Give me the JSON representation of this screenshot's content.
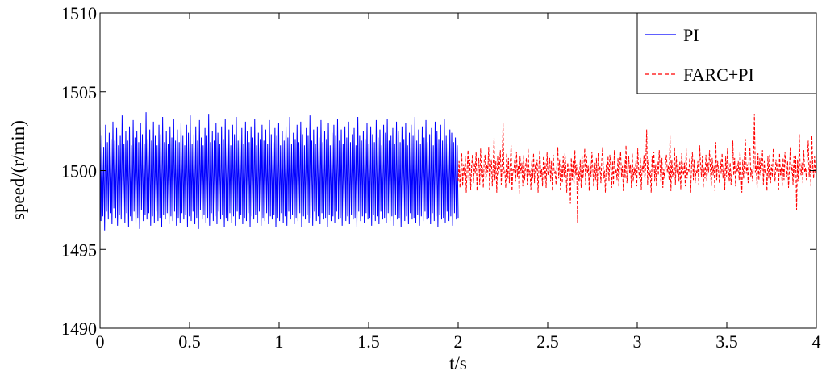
{
  "chart_data": {
    "type": "line",
    "xlabel": "t/s",
    "ylabel": "speed/(r/min)",
    "xlim": [
      0,
      4
    ],
    "ylim": [
      1490,
      1510
    ],
    "x_ticks": [
      "0",
      "0.5",
      "1",
      "1.5",
      "2",
      "2.5",
      "3",
      "3.5",
      "4"
    ],
    "y_ticks": [
      "1490",
      "1495",
      "1500",
      "1505",
      "1510"
    ],
    "grid": false,
    "legend_position": "top-right",
    "series": [
      {
        "name": "PI",
        "color": "#0000ff",
        "line_style": "solid",
        "t_start": 0,
        "t_end": 2,
        "sample_step": 0.005,
        "center": 1499.85,
        "values": [
          1503.0,
          1496.8,
          1502.2,
          1497.1,
          1501.5,
          1496.2,
          1502.9,
          1497.4,
          1501.8,
          1496.9,
          1502.4,
          1497.3,
          1502.0,
          1496.6,
          1503.1,
          1497.6,
          1501.9,
          1497.0,
          1502.7,
          1496.5,
          1501.6,
          1497.2,
          1502.2,
          1496.9,
          1503.5,
          1497.5,
          1501.7,
          1496.7,
          1502.5,
          1497.3,
          1501.9,
          1496.4,
          1502.8,
          1497.1,
          1501.6,
          1496.8,
          1503.2,
          1497.4,
          1502.1,
          1496.6,
          1502.5,
          1497.0,
          1501.8,
          1496.3,
          1503.0,
          1497.5,
          1502.3,
          1496.8,
          1501.7,
          1497.2,
          1503.7,
          1496.9,
          1502.0,
          1497.3,
          1502.6,
          1496.5,
          1501.9,
          1497.1,
          1503.1,
          1496.7,
          1502.2,
          1497.4,
          1501.6,
          1496.8,
          1502.9,
          1497.0,
          1502.3,
          1496.4,
          1503.4,
          1497.2,
          1501.8,
          1496.9,
          1502.5,
          1497.3,
          1501.7,
          1496.6,
          1502.8,
          1497.1,
          1502.1,
          1496.8,
          1503.3,
          1497.4,
          1501.9,
          1496.5,
          1502.6,
          1497.0,
          1501.8,
          1496.7,
          1503.0,
          1497.3,
          1502.2,
          1496.9,
          1501.6,
          1497.2,
          1502.9,
          1496.4,
          1502.4,
          1497.1,
          1503.5,
          1496.8,
          1501.7,
          1497.4,
          1502.3,
          1496.6,
          1502.8,
          1497.0,
          1501.9,
          1496.3,
          1503.2,
          1497.5,
          1502.1,
          1496.9,
          1501.6,
          1497.2,
          1502.7,
          1496.7,
          1502.2,
          1497.0,
          1503.6,
          1496.5,
          1501.8,
          1497.3,
          1502.5,
          1496.8,
          1501.9,
          1497.1,
          1503.0,
          1496.6,
          1502.4,
          1497.4,
          1501.7,
          1496.9,
          1502.8,
          1497.2,
          1502.0,
          1496.4,
          1503.3,
          1497.0,
          1501.8,
          1496.8,
          1502.6,
          1497.3,
          1501.6,
          1496.7,
          1502.9,
          1497.1,
          1502.3,
          1496.5,
          1503.4,
          1497.4,
          1501.9,
          1496.9,
          1502.2,
          1497.2,
          1502.7,
          1496.6,
          1501.7,
          1497.0,
          1503.1,
          1496.8,
          1502.5,
          1497.3,
          1501.8,
          1496.4,
          1502.8,
          1497.1,
          1502.1,
          1496.9,
          1503.3,
          1497.2,
          1501.6,
          1496.7,
          1502.4,
          1497.4,
          1502.0,
          1496.5,
          1502.9,
          1497.0,
          1501.9,
          1496.8,
          1502.6,
          1497.3,
          1501.7,
          1496.6,
          1503.2,
          1497.1,
          1502.3,
          1496.9,
          1501.8,
          1497.2,
          1502.7,
          1496.4,
          1502.2,
          1497.0,
          1503.0,
          1496.8,
          1501.6,
          1497.3,
          1502.5,
          1496.7,
          1501.9,
          1497.1,
          1502.8,
          1496.5,
          1502.1,
          1497.4,
          1503.4,
          1496.9,
          1501.7,
          1497.2,
          1502.4,
          1496.6,
          1502.0,
          1497.0,
          1502.9,
          1496.8,
          1501.8,
          1497.3,
          1503.1,
          1496.4,
          1502.3,
          1497.1,
          1501.6,
          1496.9,
          1502.7,
          1497.2,
          1502.2,
          1496.7,
          1503.5,
          1497.0,
          1501.9,
          1496.5,
          1502.6,
          1497.4,
          1501.7,
          1496.8,
          1502.8,
          1497.1,
          1502.1,
          1496.6,
          1503.2,
          1497.3,
          1501.8,
          1496.9,
          1502.5,
          1497.0,
          1502.0,
          1496.4,
          1503.0,
          1497.2,
          1501.6,
          1496.8,
          1502.4,
          1497.1,
          1502.9,
          1496.7,
          1502.2,
          1497.4,
          1503.3,
          1496.9,
          1501.9,
          1497.0,
          1502.6,
          1496.5,
          1501.7,
          1497.3,
          1502.8,
          1496.8,
          1502.1,
          1497.1,
          1503.1,
          1496.6,
          1501.8,
          1497.2,
          1502.3,
          1496.9,
          1502.7,
          1497.0,
          1501.6,
          1496.4,
          1503.4,
          1497.4,
          1502.2,
          1496.8,
          1501.9,
          1497.1,
          1502.5,
          1496.7,
          1502.0,
          1497.3,
          1503.0,
          1496.9,
          1501.7,
          1497.0,
          1502.8,
          1496.5,
          1502.3,
          1497.2,
          1501.8,
          1496.8,
          1503.2,
          1497.1,
          1502.1,
          1496.6,
          1502.6,
          1497.4,
          1501.6,
          1496.9,
          1502.9,
          1497.0,
          1502.4,
          1496.7,
          1503.3,
          1497.3,
          1501.9,
          1496.8,
          1502.2,
          1497.1,
          1502.7,
          1496.5,
          1501.7,
          1497.2,
          1503.1,
          1496.9,
          1502.5,
          1497.0,
          1501.8,
          1496.4,
          1502.8,
          1497.4,
          1502.0,
          1496.8,
          1503.0,
          1497.1,
          1501.6,
          1496.6,
          1502.4,
          1497.3,
          1502.9,
          1496.9,
          1502.2,
          1497.0,
          1503.4,
          1496.7,
          1501.9,
          1497.2,
          1502.6,
          1496.5,
          1501.7,
          1497.1,
          1502.8,
          1496.8,
          1502.1,
          1497.4,
          1503.2,
          1496.9,
          1501.8,
          1497.0,
          1502.3,
          1496.6,
          1502.7,
          1497.3,
          1501.6,
          1496.8,
          1503.1,
          1497.1,
          1502.5,
          1496.4,
          1502.0,
          1497.2,
          1502.9,
          1496.9,
          1501.9,
          1497.0,
          1503.3,
          1496.7,
          1502.2,
          1497.4,
          1501.7,
          1496.8,
          1502.6,
          1497.1,
          1502.4,
          1496.5,
          1501.8,
          1497.3,
          1502.1,
          1496.9,
          1501.6,
          1497.0
        ]
      },
      {
        "name": "FARC+PI",
        "color": "#ff0000",
        "line_style": "dashed",
        "t_start": 2,
        "t_end": 4,
        "sample_step": 0.005,
        "center": 1500.0,
        "values": [
          1499.3,
          1500.6,
          1498.9,
          1500.2,
          1501.1,
          1499.0,
          1500.4,
          1499.7,
          1500.9,
          1498.6,
          1500.1,
          1501.3,
          1499.4,
          1500.7,
          1498.8,
          1500.3,
          1501.0,
          1499.2,
          1500.5,
          1499.8,
          1501.2,
          1498.7,
          1500.0,
          1500.8,
          1499.1,
          1501.4,
          1499.6,
          1500.2,
          1498.9,
          1500.6,
          1501.0,
          1499.3,
          1500.4,
          1499.9,
          1501.5,
          1498.8,
          1500.1,
          1500.7,
          1499.0,
          1500.3,
          1502.1,
          1499.4,
          1500.6,
          1498.6,
          1500.9,
          1499.7,
          1500.2,
          1501.3,
          1499.1,
          1500.5,
          1503.0,
          1499.8,
          1500.0,
          1498.9,
          1501.1,
          1499.5,
          1500.8,
          1499.2,
          1500.4,
          1501.6,
          1498.7,
          1500.1,
          1499.9,
          1500.7,
          1499.3,
          1501.2,
          1499.6,
          1500.3,
          1498.5,
          1500.9,
          1499.8,
          1500.5,
          1499.0,
          1501.0,
          1499.4,
          1500.2,
          1500.8,
          1499.1,
          1501.4,
          1499.7,
          1500.0,
          1498.8,
          1500.6,
          1499.5,
          1501.1,
          1499.2,
          1500.4,
          1499.9,
          1500.7,
          1498.6,
          1500.3,
          1501.3,
          1499.6,
          1500.1,
          1499.0,
          1500.9,
          1499.4,
          1500.5,
          1498.9,
          1501.2,
          1499.7,
          1500.2,
          1500.8,
          1499.3,
          1500.6,
          1498.7,
          1501.0,
          1499.8,
          1500.0,
          1499.1,
          1500.4,
          1501.5,
          1499.5,
          1500.7,
          1498.8,
          1500.3,
          1499.2,
          1500.9,
          1499.6,
          1501.1,
          1500.1,
          1498.6,
          1500.5,
          1499.9,
          1500.2,
          1497.9,
          1500.8,
          1499.4,
          1500.6,
          1499.0,
          1501.3,
          1499.7,
          1500.4,
          1496.7,
          1500.0,
          1499.3,
          1500.7,
          1498.9,
          1501.0,
          1499.5,
          1500.2,
          1501.4,
          1499.1,
          1500.9,
          1499.8,
          1500.3,
          1498.7,
          1500.6,
          1499.6,
          1501.2,
          1500.1,
          1499.0,
          1500.5,
          1499.4,
          1500.8,
          1498.8,
          1501.1,
          1499.9,
          1500.3,
          1499.2,
          1500.7,
          1501.5,
          1499.5,
          1500.0,
          1498.6,
          1500.4,
          1499.7,
          1500.9,
          1499.3,
          1501.0,
          1500.2,
          1498.9,
          1500.6,
          1499.1,
          1501.3,
          1499.8,
          1500.1,
          1499.4,
          1500.8,
          1499.0,
          1500.5,
          1501.2,
          1499.6,
          1500.3,
          1498.7,
          1500.7,
          1499.5,
          1501.6,
          1499.2,
          1500.0,
          1500.9,
          1499.8,
          1500.4,
          1498.9,
          1501.1,
          1499.3,
          1500.2,
          1499.7,
          1500.6,
          1499.0,
          1501.4,
          1500.1,
          1499.5,
          1500.8,
          1498.8,
          1500.3,
          1499.9,
          1501.0,
          1499.4,
          1500.5,
          1502.6,
          1499.1,
          1500.7,
          1499.6,
          1500.0,
          1498.6,
          1500.9,
          1499.8,
          1501.2,
          1499.3,
          1500.4,
          1499.0,
          1500.6,
          1499.7,
          1501.3,
          1500.2,
          1499.2,
          1500.8,
          1498.9,
          1500.1,
          1499.5,
          1500.5,
          1501.0,
          1499.9,
          1500.3,
          1499.4,
          1502.2,
          1498.7,
          1500.7,
          1499.6,
          1500.0,
          1501.5,
          1499.1,
          1500.9,
          1499.8,
          1500.4,
          1499.3,
          1500.6,
          1498.8,
          1501.1,
          1500.2,
          1499.7,
          1500.5,
          1499.0,
          1501.4,
          1499.5,
          1500.1,
          1499.9,
          1500.8,
          1498.6,
          1500.3,
          1501.2,
          1499.4,
          1500.7,
          1499.2,
          1500.0,
          1499.8,
          1500.6,
          1499.1,
          1501.6,
          1500.4,
          1499.6,
          1500.9,
          1498.9,
          1500.2,
          1499.5,
          1501.0,
          1499.3,
          1500.5,
          1499.9,
          1501.3,
          1500.1,
          1499.0,
          1500.8,
          1499.7,
          1500.3,
          1498.7,
          1501.8,
          1499.4,
          1500.6,
          1500.0,
          1499.2,
          1500.7,
          1499.8,
          1501.1,
          1499.5,
          1500.4,
          1498.8,
          1500.9,
          1499.6,
          1501.4,
          1500.2,
          1499.3,
          1500.5,
          1499.1,
          1500.1,
          1501.9,
          1499.7,
          1500.8,
          1499.0,
          1500.3,
          1499.9,
          1500.6,
          1499.4,
          1501.2,
          1500.0,
          1498.6,
          1500.7,
          1499.5,
          1501.0,
          1502.0,
          1499.8,
          1500.4,
          1499.2,
          1500.9,
          1501.5,
          1499.6,
          1500.1,
          1499.3,
          1500.5,
          1503.6,
          1499.9,
          1500.3,
          1498.9,
          1501.1,
          1499.4,
          1500.8,
          1499.7,
          1500.2,
          1501.3,
          1499.1,
          1500.6,
          1499.8,
          1500.0,
          1498.7,
          1500.9,
          1499.5,
          1501.0,
          1499.2,
          1500.4,
          1499.6,
          1501.4,
          1500.1,
          1499.3,
          1500.7,
          1499.9,
          1500.5,
          1498.8,
          1501.1,
          1499.7,
          1500.2,
          1499.0,
          1500.8,
          1499.4,
          1501.2,
          1500.3,
          1499.6,
          1500.6,
          1498.9,
          1500.0,
          1501.5,
          1499.8,
          1500.4,
          1499.1,
          1500.9,
          1499.5,
          1501.0,
          1497.5,
          1500.7,
          1499.3,
          1502.3,
          1500.1,
          1499.7,
          1500.5,
          1499.2,
          1501.3,
          1499.9,
          1500.2,
          1499.4,
          1500.8,
          1501.9,
          1499.6,
          1500.6,
          1499.0,
          1502.2,
          1500.3,
          1499.5,
          1500.9,
          1499.8,
          1500.0
        ]
      }
    ]
  }
}
